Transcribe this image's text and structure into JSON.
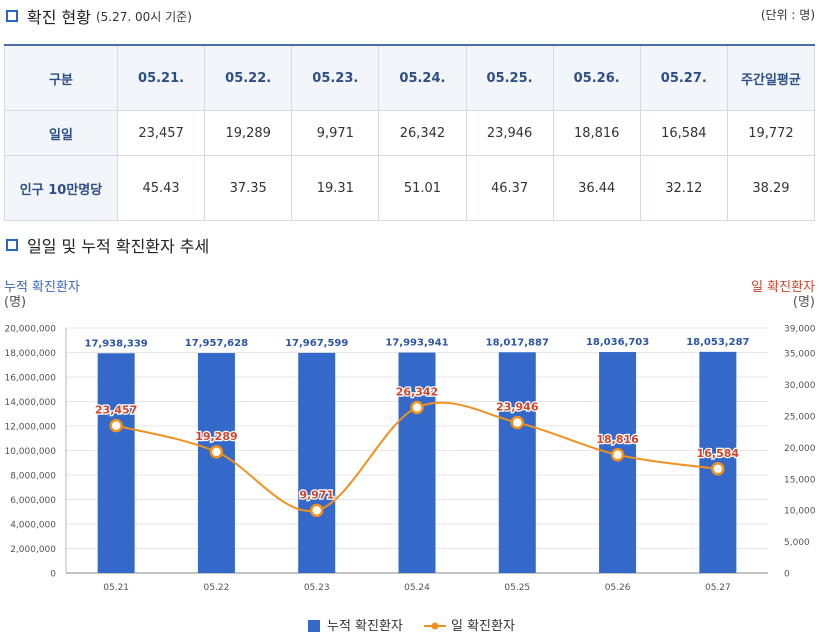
{
  "header": {
    "title": "확진 현황",
    "subtitle": "(5.27. 00시 기준)",
    "unit": "(단위 : 명)"
  },
  "table": {
    "corner": "구분",
    "columns": [
      "05.21.",
      "05.22.",
      "05.23.",
      "05.24.",
      "05.25.",
      "05.26.",
      "05.27.",
      "주간일평균"
    ],
    "rows": [
      {
        "label": "일일",
        "values": [
          "23,457",
          "19,289",
          "9,971",
          "26,342",
          "23,946",
          "18,816",
          "16,584",
          "19,772"
        ]
      },
      {
        "label": "인구 10만명당",
        "values": [
          "45.43",
          "37.35",
          "19.31",
          "51.01",
          "46.37",
          "36.44",
          "32.12",
          "38.29"
        ]
      }
    ]
  },
  "section2": {
    "title": "일일 및 누적 확진환자 추세"
  },
  "chart_data": {
    "type": "bar",
    "title": "",
    "categories": [
      "05.21",
      "05.22",
      "05.23",
      "05.24",
      "05.25",
      "05.26",
      "05.27"
    ],
    "left_axis": {
      "label": "누적 확진환자",
      "unit": "(명)",
      "ylim": [
        0,
        20000000
      ],
      "ticks": [
        0,
        2000000,
        4000000,
        6000000,
        8000000,
        10000000,
        12000000,
        14000000,
        16000000,
        18000000,
        20000000
      ]
    },
    "right_axis": {
      "label": "일 확진환자",
      "unit": "(명)",
      "ylim": [
        0,
        39000
      ],
      "ticks": [
        0,
        5000,
        10000,
        15000,
        20000,
        25000,
        30000,
        35000,
        39000
      ]
    },
    "series": [
      {
        "name": "누적 확진환자",
        "type": "bar",
        "axis": "left",
        "color": "#3469c9",
        "values": [
          17938339,
          17957628,
          17967599,
          17993941,
          18017887,
          18036703,
          18053287
        ]
      },
      {
        "name": "일 확진환자",
        "type": "line",
        "axis": "right",
        "color": "#f0911e",
        "smooth": true,
        "values": [
          23457,
          19289,
          9971,
          26342,
          23946,
          18816,
          16584
        ]
      }
    ],
    "grid": true,
    "legend": "bottom-center"
  }
}
